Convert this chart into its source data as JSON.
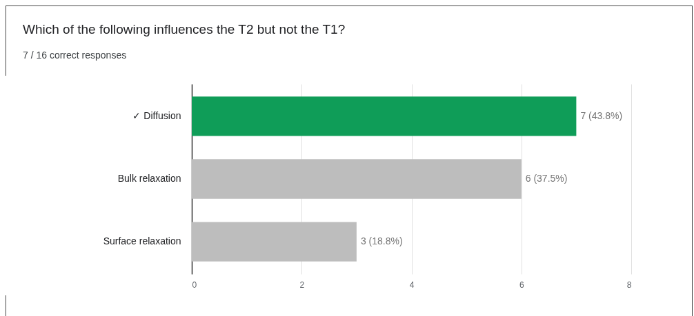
{
  "chart_data": {
    "type": "bar",
    "orientation": "horizontal",
    "title": "Which of the following influences the T2 but not the T1?",
    "subtitle": "7 / 16 correct responses",
    "categories": [
      "✓ Diffusion",
      "Bulk relaxation",
      "Surface relaxation"
    ],
    "values": [
      7,
      6,
      3
    ],
    "colors": [
      "#0f9d58",
      "#bdbdbd",
      "#bdbdbd"
    ],
    "value_labels": [
      "7 (43.8%)",
      "6 (37.5%)",
      "3 (18.8%)"
    ],
    "xlim": [
      0,
      8
    ],
    "xticks": [
      0,
      2,
      4,
      6,
      8
    ],
    "grid": "x"
  }
}
